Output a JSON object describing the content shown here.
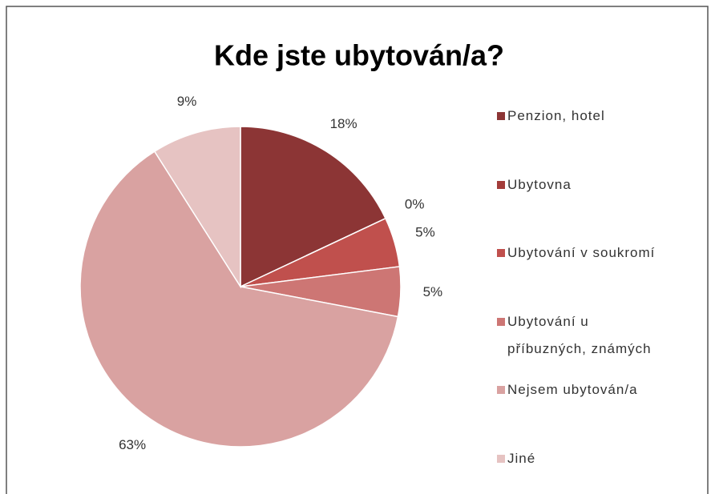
{
  "chart_data": {
    "type": "pie",
    "title": "Kde jste ubytován/a?",
    "categories": [
      "Penzion, hotel",
      "Ubytovna",
      "Ubytování v soukromí",
      "Ubytování u příbuzných, známých",
      "Nejsem ubytován/a",
      "Jiné"
    ],
    "values": [
      18,
      0,
      5,
      5,
      63,
      9
    ],
    "value_labels": [
      "18%",
      "0%",
      "5%",
      "5%",
      "63%",
      "9%"
    ],
    "colors": [
      "#8c3535",
      "#a33c3a",
      "#c0504d",
      "#cd7674",
      "#d9a2a1",
      "#e6c3c2"
    ],
    "legend": "right"
  }
}
